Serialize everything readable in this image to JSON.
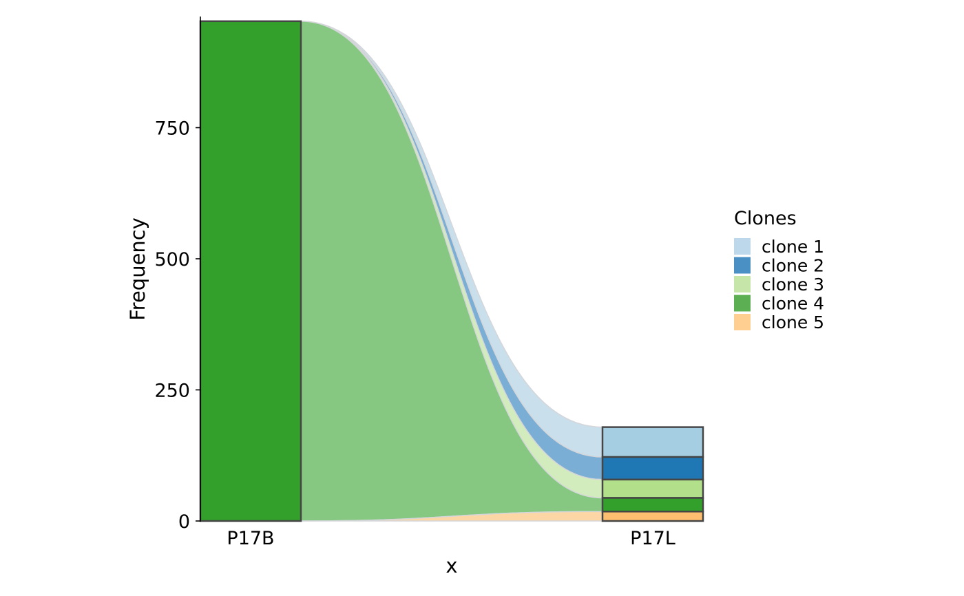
{
  "chart_data": {
    "type": "alluvial",
    "xlabel": "x",
    "ylabel": "Frequency",
    "categories": [
      "P17B",
      "P17L"
    ],
    "ylim": [
      0,
      955
    ],
    "yticks": [
      0,
      250,
      500,
      750
    ],
    "legend": {
      "title": "Clones",
      "placement": "right"
    },
    "series": [
      {
        "name": "clone 1",
        "values": [
          0,
          57
        ],
        "color": "#a6cee3"
      },
      {
        "name": "clone 2",
        "values": [
          0,
          43
        ],
        "color": "#1f78b4"
      },
      {
        "name": "clone 3",
        "values": [
          0,
          35
        ],
        "color": "#b2df8a"
      },
      {
        "name": "clone 4",
        "values": [
          953,
          26
        ],
        "color": "#33a02c"
      },
      {
        "name": "clone 5",
        "values": [
          0,
          18
        ],
        "color": "#fdbf6f"
      }
    ],
    "flow_colors": [
      "#c9dfec",
      "#7aaed4",
      "#d3ecbe",
      "#86c781",
      "#fdd6a6"
    ],
    "legend_colors": [
      "#bcd8ea",
      "#4a90c4",
      "#c6e5a9",
      "#5caf52",
      "#fecf90"
    ],
    "grid": false
  }
}
